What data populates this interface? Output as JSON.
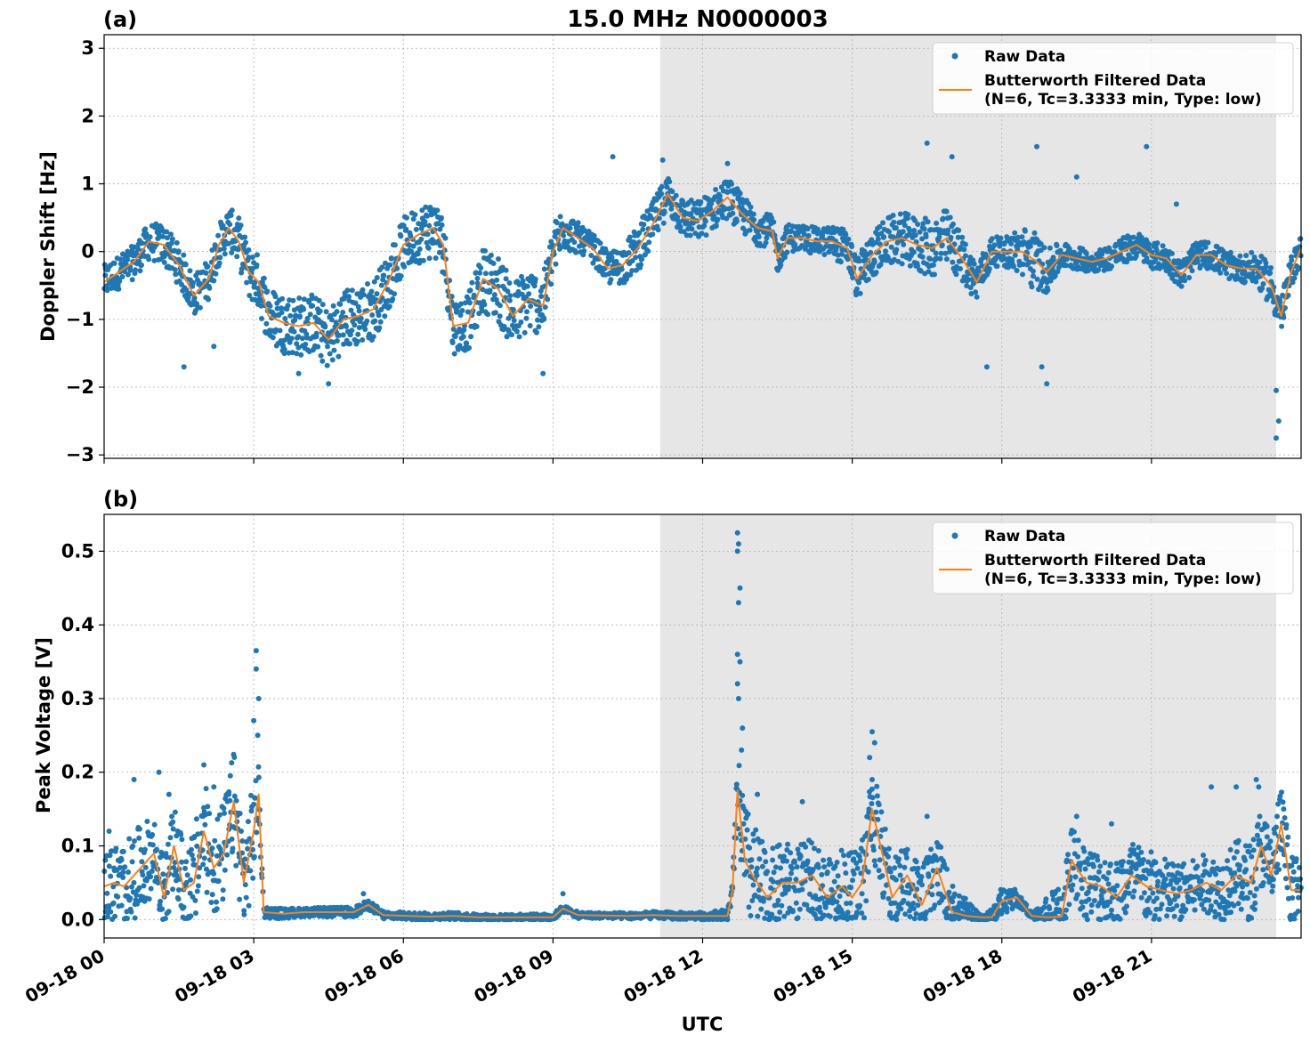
{
  "figure": {
    "title": "15.0 MHz N0000003",
    "xlabel": "UTC"
  },
  "colors": {
    "raw": "#1f77b4",
    "filtered": "#ff7f0e",
    "shade": "#e6e6e6",
    "grid": "#b0b0b0"
  },
  "chart_data": [
    {
      "type": "scatter",
      "panel_label": "(a)",
      "ylabel": "Doppler Shift [Hz]",
      "xlim": [
        0,
        24
      ],
      "ylim": [
        -3.05,
        3.2
      ],
      "yticks": [
        3,
        2,
        1,
        0,
        -1,
        -2,
        -3
      ],
      "ytick_labels": [
        "3",
        "2",
        "1",
        "0",
        "−1",
        "−2",
        "−3"
      ],
      "xticks": [
        0,
        3,
        6,
        9,
        12,
        15,
        18,
        21
      ],
      "xtick_labels": [
        "09-18 00",
        "09-18 03",
        "09-18 06",
        "09-18 09",
        "09-18 12",
        "09-18 15",
        "09-18 18",
        "09-18 21"
      ],
      "shaded_region": [
        11.15,
        23.5
      ],
      "legend": {
        "location": "top-right",
        "raw_label": "Raw Data",
        "filtered_label_line1": "Butterworth Filtered Data",
        "filtered_label_line2": "(N=6, Tc=3.3333 min, Type: low)"
      },
      "filtered_series": {
        "name": "Butterworth Filtered Data",
        "x": [
          0,
          0.3,
          0.6,
          0.9,
          1.2,
          1.5,
          1.8,
          2.1,
          2.3,
          2.5,
          2.7,
          2.9,
          3.1,
          3.3,
          3.6,
          3.9,
          4.2,
          4.5,
          4.8,
          5.1,
          5.4,
          5.7,
          6.0,
          6.3,
          6.6,
          6.8,
          7.0,
          7.3,
          7.6,
          7.9,
          8.2,
          8.5,
          8.8,
          9.0,
          9.2,
          9.5,
          9.8,
          10.1,
          10.4,
          10.7,
          11.0,
          11.3,
          11.6,
          11.9,
          12.2,
          12.5,
          12.8,
          13.1,
          13.4,
          13.5,
          13.7,
          14.0,
          14.3,
          14.6,
          14.9,
          15.1,
          15.4,
          15.7,
          16.0,
          16.3,
          16.6,
          16.9,
          17.2,
          17.5,
          17.8,
          18.1,
          18.4,
          18.7,
          18.9,
          19.2,
          19.5,
          19.8,
          20.1,
          20.4,
          20.7,
          21.0,
          21.3,
          21.6,
          21.9,
          22.2,
          22.5,
          22.8,
          23.1,
          23.4,
          23.6,
          23.8,
          24.0
        ],
        "y": [
          -0.45,
          -0.3,
          -0.15,
          0.15,
          0.1,
          -0.2,
          -0.65,
          -0.4,
          0.1,
          0.35,
          0.15,
          -0.3,
          -0.45,
          -0.95,
          -1.05,
          -1.1,
          -1.05,
          -1.3,
          -1.0,
          -0.95,
          -0.85,
          -0.45,
          0.1,
          0.25,
          0.35,
          0.1,
          -1.1,
          -1.05,
          -0.4,
          -0.55,
          -0.95,
          -0.7,
          -0.8,
          0.0,
          0.35,
          0.2,
          0.05,
          -0.25,
          -0.2,
          0.05,
          0.4,
          0.85,
          0.5,
          0.45,
          0.6,
          0.8,
          0.55,
          0.35,
          0.3,
          -0.1,
          0.2,
          0.2,
          0.15,
          0.15,
          0.05,
          -0.4,
          -0.05,
          0.15,
          0.2,
          0.1,
          0.05,
          0.2,
          -0.1,
          -0.45,
          0.0,
          0.0,
          0.0,
          -0.15,
          -0.3,
          -0.05,
          -0.1,
          -0.15,
          -0.1,
          0.0,
          0.1,
          -0.05,
          -0.1,
          -0.35,
          -0.05,
          -0.05,
          -0.2,
          -0.25,
          -0.25,
          -0.5,
          -0.95,
          -0.3,
          0.05
        ]
      },
      "raw_band": {
        "name": "Raw Data",
        "x": [
          0,
          0.6,
          1.2,
          1.8,
          2.4,
          3.0,
          3.6,
          4.2,
          4.8,
          5.4,
          6.0,
          6.6,
          7.2,
          7.8,
          8.4,
          9.0,
          9.6,
          10.2,
          10.8,
          11.4,
          12.0,
          12.6,
          13.2,
          13.8,
          14.4,
          15.0,
          15.6,
          16.2,
          16.8,
          17.4,
          18.0,
          18.6,
          19.2,
          19.8,
          20.4,
          21.0,
          21.6,
          22.2,
          22.8,
          23.4,
          24.0
        ],
        "spread": [
          0.25,
          0.25,
          0.3,
          0.3,
          0.3,
          0.4,
          0.45,
          0.45,
          0.45,
          0.45,
          0.4,
          0.45,
          0.4,
          0.5,
          0.5,
          0.4,
          0.2,
          0.25,
          0.35,
          0.3,
          0.3,
          0.3,
          0.25,
          0.2,
          0.2,
          0.3,
          0.35,
          0.4,
          0.45,
          0.3,
          0.2,
          0.45,
          0.2,
          0.15,
          0.2,
          0.2,
          0.2,
          0.2,
          0.2,
          0.3,
          0.2
        ]
      },
      "raw_outliers": [
        [
          1.6,
          -1.7
        ],
        [
          2.2,
          -1.4
        ],
        [
          3.9,
          -1.8
        ],
        [
          4.5,
          -1.95
        ],
        [
          8.8,
          -1.8
        ],
        [
          10.2,
          1.4
        ],
        [
          11.2,
          1.35
        ],
        [
          12.5,
          1.3
        ],
        [
          16.5,
          1.6
        ],
        [
          18.7,
          1.55
        ],
        [
          18.9,
          -1.95
        ],
        [
          18.8,
          -1.7
        ],
        [
          20.9,
          1.55
        ],
        [
          23.5,
          -2.05
        ],
        [
          23.5,
          -2.75
        ],
        [
          23.55,
          -2.5
        ],
        [
          17.0,
          1.4
        ],
        [
          19.5,
          1.1
        ],
        [
          21.5,
          0.7
        ],
        [
          17.7,
          -1.7
        ]
      ]
    },
    {
      "type": "scatter",
      "panel_label": "(b)",
      "ylabel": "Peak Voltage [V]",
      "xlim": [
        0,
        24
      ],
      "ylim": [
        -0.025,
        0.55
      ],
      "yticks": [
        0.5,
        0.4,
        0.3,
        0.2,
        0.1,
        0.0
      ],
      "ytick_labels": [
        "0.5",
        "0.4",
        "0.3",
        "0.2",
        "0.1",
        "0.0"
      ],
      "xticks": [
        0,
        3,
        6,
        9,
        12,
        15,
        18,
        21
      ],
      "xtick_labels": [
        "09-18 00",
        "09-18 03",
        "09-18 06",
        "09-18 09",
        "09-18 12",
        "09-18 15",
        "09-18 18",
        "09-18 21"
      ],
      "shaded_region": [
        11.15,
        23.5
      ],
      "legend": {
        "location": "top-right",
        "raw_label": "Raw Data",
        "filtered_label_line1": "Butterworth Filtered Data",
        "filtered_label_line2": "(N=6, Tc=3.3333 min, Type: low)"
      },
      "filtered_series": {
        "name": "Butterworth Filtered Data",
        "x": [
          0,
          0.2,
          0.4,
          0.6,
          0.8,
          1.0,
          1.2,
          1.4,
          1.6,
          1.8,
          2.0,
          2.2,
          2.4,
          2.6,
          2.8,
          3.0,
          3.1,
          3.2,
          3.6,
          4.0,
          5.0,
          5.3,
          5.6,
          6.5,
          7.0,
          7.5,
          8.0,
          9.0,
          9.2,
          9.5,
          10.5,
          11.0,
          11.5,
          12.0,
          12.5,
          12.6,
          12.7,
          12.85,
          13.0,
          13.3,
          13.6,
          13.9,
          14.2,
          14.5,
          14.8,
          15.0,
          15.2,
          15.4,
          15.6,
          15.8,
          16.1,
          16.4,
          16.7,
          17.0,
          17.3,
          17.6,
          17.8,
          18.0,
          18.3,
          18.6,
          18.9,
          19.2,
          19.4,
          19.7,
          20.0,
          20.3,
          20.6,
          20.9,
          21.2,
          21.5,
          21.8,
          22.1,
          22.4,
          22.7,
          23.0,
          23.2,
          23.4,
          23.6,
          23.8,
          24.0
        ],
        "y": [
          0.045,
          0.05,
          0.045,
          0.06,
          0.075,
          0.09,
          0.03,
          0.1,
          0.04,
          0.05,
          0.12,
          0.07,
          0.09,
          0.16,
          0.05,
          0.12,
          0.17,
          0.01,
          0.008,
          0.01,
          0.01,
          0.02,
          0.006,
          0.004,
          0.005,
          0.003,
          0.003,
          0.003,
          0.015,
          0.006,
          0.005,
          0.006,
          0.005,
          0.005,
          0.005,
          0.04,
          0.175,
          0.08,
          0.06,
          0.03,
          0.05,
          0.05,
          0.06,
          0.03,
          0.045,
          0.03,
          0.05,
          0.15,
          0.09,
          0.03,
          0.06,
          0.02,
          0.07,
          0.01,
          0.005,
          0.003,
          0.003,
          0.025,
          0.03,
          0.005,
          0.003,
          0.004,
          0.08,
          0.05,
          0.045,
          0.03,
          0.06,
          0.045,
          0.04,
          0.035,
          0.04,
          0.05,
          0.04,
          0.06,
          0.05,
          0.1,
          0.06,
          0.13,
          0.04,
          0.04
        ]
      },
      "raw_band": {
        "name": "Raw Data",
        "x": [
          0,
          0.6,
          1.2,
          1.8,
          2.4,
          3.0,
          3.2,
          4.0,
          5.0,
          6.0,
          7.0,
          8.0,
          9.0,
          10.0,
          11.0,
          12.0,
          12.6,
          12.8,
          13.4,
          14.0,
          14.6,
          15.2,
          15.8,
          16.4,
          17.0,
          17.6,
          18.0,
          18.6,
          19.2,
          19.8,
          20.4,
          21.0,
          21.6,
          22.2,
          22.8,
          23.4,
          24.0
        ],
        "spread": [
          0.05,
          0.06,
          0.05,
          0.07,
          0.07,
          0.07,
          0.008,
          0.006,
          0.007,
          0.005,
          0.005,
          0.004,
          0.005,
          0.004,
          0.005,
          0.005,
          0.01,
          0.08,
          0.06,
          0.05,
          0.05,
          0.07,
          0.05,
          0.05,
          0.04,
          0.003,
          0.02,
          0.003,
          0.05,
          0.05,
          0.05,
          0.05,
          0.04,
          0.04,
          0.05,
          0.06,
          0.04
        ]
      },
      "raw_outliers": [
        [
          0.1,
          0.12
        ],
        [
          0.6,
          0.19
        ],
        [
          1.1,
          0.2
        ],
        [
          1.3,
          0.17
        ],
        [
          2.0,
          0.21
        ],
        [
          2.2,
          0.18
        ],
        [
          2.5,
          0.17
        ],
        [
          3.05,
          0.365
        ],
        [
          3.05,
          0.34
        ],
        [
          3.1,
          0.3
        ],
        [
          3.0,
          0.27
        ],
        [
          3.08,
          0.25
        ],
        [
          12.7,
          0.525
        ],
        [
          12.72,
          0.51
        ],
        [
          12.7,
          0.5
        ],
        [
          12.75,
          0.45
        ],
        [
          12.72,
          0.43
        ],
        [
          12.7,
          0.36
        ],
        [
          12.75,
          0.35
        ],
        [
          12.7,
          0.32
        ],
        [
          12.72,
          0.3
        ],
        [
          12.8,
          0.26
        ],
        [
          12.78,
          0.23
        ],
        [
          15.4,
          0.255
        ],
        [
          15.45,
          0.24
        ],
        [
          15.35,
          0.22
        ],
        [
          15.4,
          0.19
        ],
        [
          14.0,
          0.16
        ],
        [
          13.1,
          0.17
        ],
        [
          16.5,
          0.14
        ],
        [
          22.2,
          0.18
        ],
        [
          22.7,
          0.18
        ],
        [
          23.1,
          0.19
        ],
        [
          23.15,
          0.18
        ],
        [
          19.5,
          0.14
        ],
        [
          20.2,
          0.13
        ],
        [
          9.2,
          0.035
        ],
        [
          5.2,
          0.035
        ]
      ]
    }
  ]
}
